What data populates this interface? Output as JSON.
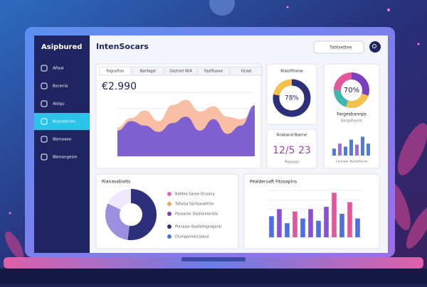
{
  "sidebar": {
    "title": "Asipbured",
    "items": [
      "Aflaal",
      "Bscenia",
      "Alslgu",
      "Bcaraatrom",
      "Bbmaaeo",
      "Bbmangesm"
    ],
    "active": 3
  },
  "header": {
    "title": "IntenSocars",
    "search": "Tabbiettee"
  },
  "main_card": {
    "tabs": [
      "Fagnaftan",
      "Banfagst",
      "Dashset W/4",
      "Fastfluaad",
      "Ociad"
    ],
    "value": "€2.990",
    "chart": {
      "type": "area",
      "ylim": [
        0,
        100
      ],
      "series": [
        {
          "color": "#f7b89a",
          "values": [
            45,
            60,
            72,
            55,
            80,
            88,
            70,
            78,
            62,
            58,
            70
          ]
        },
        {
          "color": "#6a4fd8",
          "values": [
            40,
            55,
            48,
            38,
            52,
            62,
            40,
            58,
            35,
            48,
            80
          ]
        }
      ]
    }
  },
  "donut_card": {
    "title": "Rlaisfitlanw",
    "percent": {
      "value": 78,
      "label": "78%"
    }
  },
  "ring_card": {
    "percent": {
      "value": 70,
      "label": "70%"
    },
    "title": "Fargesbannps",
    "subtitle": "Bargafianlin",
    "segments": [
      30,
      25,
      20,
      25
    ],
    "colors": [
      "#7b3fbf",
      "#f4c14f",
      "#3fb8b0",
      "#e0579b"
    ],
    "bars": [
      35,
      60,
      45,
      80,
      55,
      95,
      60
    ],
    "bar_color": "#4f7be0",
    "caption": "Casnaw Yaelatfisem"
  },
  "stat_card": {
    "title": "Rraband Baene",
    "value": "12/5 23",
    "caption": "Peopapi"
  },
  "pie_card": {
    "title": "Rlanasabialts",
    "segments": [
      52,
      30,
      18
    ],
    "colors": [
      "#2c2f7a",
      "#9b8fe0",
      "#ede8fb"
    ],
    "legend": [
      {
        "label": "Bafdea Sasee Dcsiany",
        "color": "#e06bb5"
      },
      {
        "label": "Taflaisa Sarfaasahtfas",
        "color": "#f0a35c"
      },
      {
        "label": "Pasaanar Dasfaceianata",
        "color": "#7b3fbf"
      },
      {
        "label": "Planasar Baafaltogragaral",
        "color": "#2c2f7a"
      },
      {
        "label": "Osunganaasciaaua",
        "color": "#3a7bd5"
      }
    ]
  },
  "bar_card": {
    "title": "Pealderuaft Fitosapins",
    "ylim": [
      0,
      100
    ],
    "values": [
      45,
      60,
      30,
      55,
      40,
      60,
      35,
      65,
      95,
      50,
      75,
      40
    ],
    "colors": [
      "#4f6fe0",
      "#8a4fd8",
      "#4f6fe0",
      "#e0579b",
      "#4f6fe0",
      "#8a4fd8",
      "#4f6fe0",
      "#8a4fd8",
      "#e0579b",
      "#4f6fe0",
      "#e0579b",
      "#4f6fe0"
    ]
  }
}
